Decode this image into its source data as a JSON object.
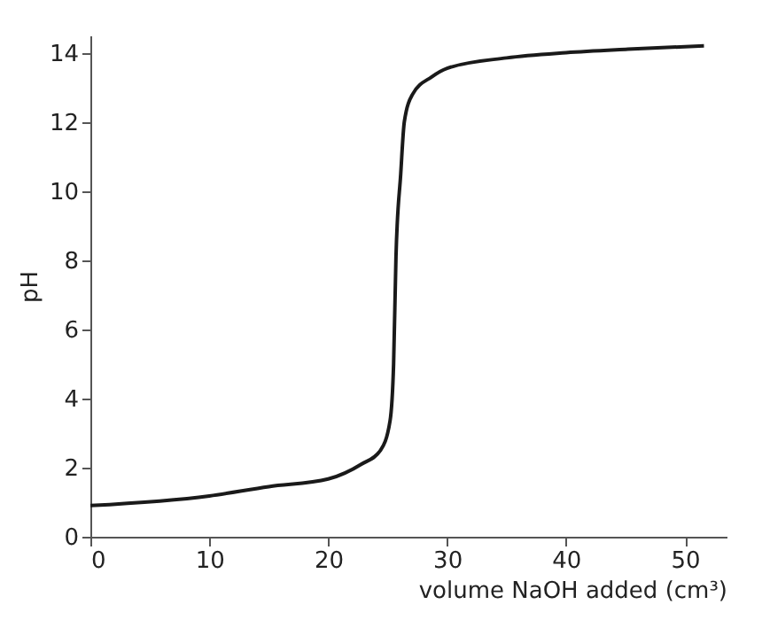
{
  "chart_data": {
    "type": "line",
    "xlabel": "volume NaOH added (cm³)",
    "ylabel": "pH",
    "x": [
      0,
      10,
      15,
      20,
      22.8,
      24.4,
      25.2,
      25.5,
      25.7,
      26.1,
      26.4,
      27.1,
      28.7,
      30,
      35,
      40,
      45.2,
      51.6
    ],
    "series": [
      {
        "color": "#1a1a1a",
        "values": [
          0.9,
          1.18,
          1.45,
          1.67,
          2.1,
          2.5,
          3.35,
          5,
          8.1,
          10.5,
          12,
          12.8,
          13.3,
          13.55,
          13.85,
          14.0,
          14.1,
          14.2
        ]
      }
    ],
    "xlim": [
      0,
      53.5
    ],
    "ylim": [
      0,
      14.5
    ],
    "xticks": [
      0,
      10,
      20,
      30,
      40,
      50
    ],
    "yticks": [
      0,
      2,
      4,
      6,
      8,
      10,
      12,
      14
    ],
    "grid": false,
    "marker": "none",
    "line_style": "solid"
  }
}
